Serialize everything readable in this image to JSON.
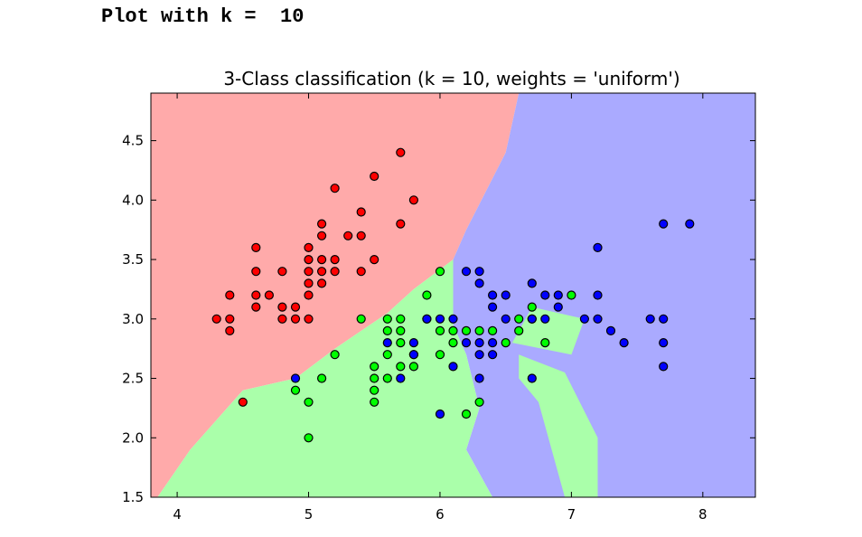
{
  "output_line": "Plot with k =  10",
  "chart_data": {
    "type": "scatter",
    "title": "3-Class classification (k = 10, weights = 'uniform')",
    "xlabel": "",
    "ylabel": "",
    "xlim": [
      3.8,
      8.4
    ],
    "ylim": [
      1.5,
      4.9
    ],
    "x_ticks": [
      4,
      5,
      6,
      7,
      8
    ],
    "x_tick_labels": [
      "4",
      "5",
      "6",
      "7",
      "8"
    ],
    "y_ticks": [
      1.5,
      2.0,
      2.5,
      3.0,
      3.5,
      4.0,
      4.5
    ],
    "y_tick_labels": [
      "1.5",
      "2.0",
      "2.5",
      "3.0",
      "3.5",
      "4.0",
      "4.5"
    ],
    "grid": false,
    "colors": {
      "region_red": "#ffaaaa",
      "region_green": "#aaffaa",
      "region_blue": "#aaaaff",
      "point_red": "#ff0000",
      "point_green": "#00ff00",
      "point_blue": "#0000ff"
    },
    "decision_regions": [
      {
        "class": "red",
        "polygon": [
          [
            3.8,
            1.5
          ],
          [
            3.85,
            1.5
          ],
          [
            4.1,
            1.9
          ],
          [
            4.5,
            2.4
          ],
          [
            4.9,
            2.5
          ],
          [
            5.2,
            2.75
          ],
          [
            5.6,
            3.05
          ],
          [
            5.8,
            3.25
          ],
          [
            6.1,
            3.5
          ],
          [
            6.2,
            3.75
          ],
          [
            6.5,
            4.4
          ],
          [
            6.6,
            4.9
          ],
          [
            3.8,
            4.9
          ]
        ]
      },
      {
        "class": "blue",
        "polygon": [
          [
            6.6,
            4.9
          ],
          [
            6.5,
            4.4
          ],
          [
            6.2,
            3.75
          ],
          [
            6.1,
            3.5
          ],
          [
            6.1,
            2.95
          ],
          [
            6.2,
            2.7
          ],
          [
            6.3,
            2.25
          ],
          [
            6.2,
            1.9
          ],
          [
            6.4,
            1.5
          ],
          [
            8.4,
            1.5
          ],
          [
            8.4,
            4.9
          ]
        ]
      },
      {
        "class": "green",
        "polygon": [
          [
            3.85,
            1.5
          ],
          [
            4.1,
            1.9
          ],
          [
            4.5,
            2.4
          ],
          [
            4.9,
            2.5
          ],
          [
            5.2,
            2.75
          ],
          [
            5.6,
            3.05
          ],
          [
            5.8,
            3.25
          ],
          [
            6.1,
            3.5
          ],
          [
            6.1,
            2.95
          ],
          [
            6.2,
            2.7
          ],
          [
            6.3,
            2.25
          ],
          [
            6.2,
            1.9
          ],
          [
            6.4,
            1.5
          ]
        ]
      },
      {
        "class": "green",
        "polygon": [
          [
            6.6,
            2.7
          ],
          [
            6.95,
            2.55
          ],
          [
            7.2,
            2.0
          ],
          [
            7.2,
            1.5
          ],
          [
            6.95,
            1.5
          ],
          [
            6.75,
            2.3
          ],
          [
            6.6,
            2.5
          ]
        ]
      },
      {
        "class": "green",
        "polygon": [
          [
            6.55,
            2.8
          ],
          [
            7.0,
            2.7
          ],
          [
            7.1,
            3.0
          ],
          [
            6.7,
            3.1
          ]
        ]
      }
    ],
    "series": [
      {
        "name": "",
        "class": "red",
        "points": [
          [
            4.3,
            3.0
          ],
          [
            4.4,
            2.9
          ],
          [
            4.4,
            3.0
          ],
          [
            4.4,
            3.2
          ],
          [
            4.5,
            2.3
          ],
          [
            4.6,
            3.1
          ],
          [
            4.6,
            3.2
          ],
          [
            4.6,
            3.4
          ],
          [
            4.6,
            3.6
          ],
          [
            4.7,
            3.2
          ],
          [
            4.8,
            3.0
          ],
          [
            4.8,
            3.1
          ],
          [
            4.8,
            3.4
          ],
          [
            4.9,
            3.0
          ],
          [
            4.9,
            3.1
          ],
          [
            5.0,
            3.0
          ],
          [
            5.0,
            3.2
          ],
          [
            5.0,
            3.3
          ],
          [
            5.0,
            3.4
          ],
          [
            5.0,
            3.5
          ],
          [
            5.0,
            3.6
          ],
          [
            5.1,
            3.3
          ],
          [
            5.1,
            3.4
          ],
          [
            5.1,
            3.5
          ],
          [
            5.1,
            3.7
          ],
          [
            5.1,
            3.8
          ],
          [
            5.2,
            3.4
          ],
          [
            5.2,
            3.5
          ],
          [
            5.2,
            4.1
          ],
          [
            5.3,
            3.7
          ],
          [
            5.4,
            3.4
          ],
          [
            5.4,
            3.7
          ],
          [
            5.4,
            3.9
          ],
          [
            5.5,
            3.5
          ],
          [
            5.5,
            4.2
          ],
          [
            5.7,
            3.8
          ],
          [
            5.7,
            4.4
          ],
          [
            5.8,
            4.0
          ]
        ]
      },
      {
        "name": "",
        "class": "green",
        "points": [
          [
            4.9,
            2.4
          ],
          [
            5.0,
            2.0
          ],
          [
            5.0,
            2.3
          ],
          [
            5.1,
            2.5
          ],
          [
            5.2,
            2.7
          ],
          [
            5.4,
            3.0
          ],
          [
            5.5,
            2.3
          ],
          [
            5.5,
            2.4
          ],
          [
            5.5,
            2.5
          ],
          [
            5.5,
            2.6
          ],
          [
            5.6,
            2.5
          ],
          [
            5.6,
            2.7
          ],
          [
            5.6,
            2.9
          ],
          [
            5.6,
            3.0
          ],
          [
            5.7,
            2.6
          ],
          [
            5.7,
            2.8
          ],
          [
            5.7,
            2.9
          ],
          [
            5.7,
            3.0
          ],
          [
            5.8,
            2.6
          ],
          [
            5.8,
            2.7
          ],
          [
            5.9,
            3.0
          ],
          [
            5.9,
            3.2
          ],
          [
            6.0,
            2.7
          ],
          [
            6.0,
            2.9
          ],
          [
            6.0,
            3.4
          ],
          [
            6.1,
            2.8
          ],
          [
            6.1,
            2.9
          ],
          [
            6.2,
            2.2
          ],
          [
            6.2,
            2.9
          ],
          [
            6.3,
            2.3
          ],
          [
            6.3,
            2.9
          ],
          [
            6.4,
            2.9
          ],
          [
            6.5,
            2.8
          ],
          [
            6.6,
            2.9
          ],
          [
            6.6,
            3.0
          ],
          [
            6.7,
            3.0
          ],
          [
            6.7,
            3.1
          ],
          [
            6.8,
            2.8
          ],
          [
            7.0,
            3.2
          ]
        ]
      },
      {
        "name": "",
        "class": "blue",
        "points": [
          [
            4.9,
            2.5
          ],
          [
            5.6,
            2.8
          ],
          [
            5.7,
            2.5
          ],
          [
            5.8,
            2.7
          ],
          [
            5.8,
            2.8
          ],
          [
            5.9,
            3.0
          ],
          [
            6.0,
            2.2
          ],
          [
            6.0,
            3.0
          ],
          [
            6.1,
            2.6
          ],
          [
            6.1,
            3.0
          ],
          [
            6.2,
            2.8
          ],
          [
            6.2,
            3.4
          ],
          [
            6.3,
            2.5
          ],
          [
            6.3,
            2.7
          ],
          [
            6.3,
            2.8
          ],
          [
            6.3,
            3.3
          ],
          [
            6.3,
            3.4
          ],
          [
            6.4,
            2.7
          ],
          [
            6.4,
            2.8
          ],
          [
            6.4,
            3.1
          ],
          [
            6.4,
            3.2
          ],
          [
            6.5,
            3.0
          ],
          [
            6.5,
            3.2
          ],
          [
            6.7,
            2.5
          ],
          [
            6.7,
            3.0
          ],
          [
            6.7,
            3.3
          ],
          [
            6.8,
            3.0
          ],
          [
            6.8,
            3.2
          ],
          [
            6.9,
            3.1
          ],
          [
            6.9,
            3.2
          ],
          [
            7.1,
            3.0
          ],
          [
            7.2,
            3.0
          ],
          [
            7.2,
            3.2
          ],
          [
            7.2,
            3.6
          ],
          [
            7.3,
            2.9
          ],
          [
            7.4,
            2.8
          ],
          [
            7.6,
            3.0
          ],
          [
            7.7,
            2.6
          ],
          [
            7.7,
            2.8
          ],
          [
            7.7,
            3.0
          ],
          [
            7.7,
            3.8
          ],
          [
            7.9,
            3.8
          ]
        ]
      }
    ]
  }
}
